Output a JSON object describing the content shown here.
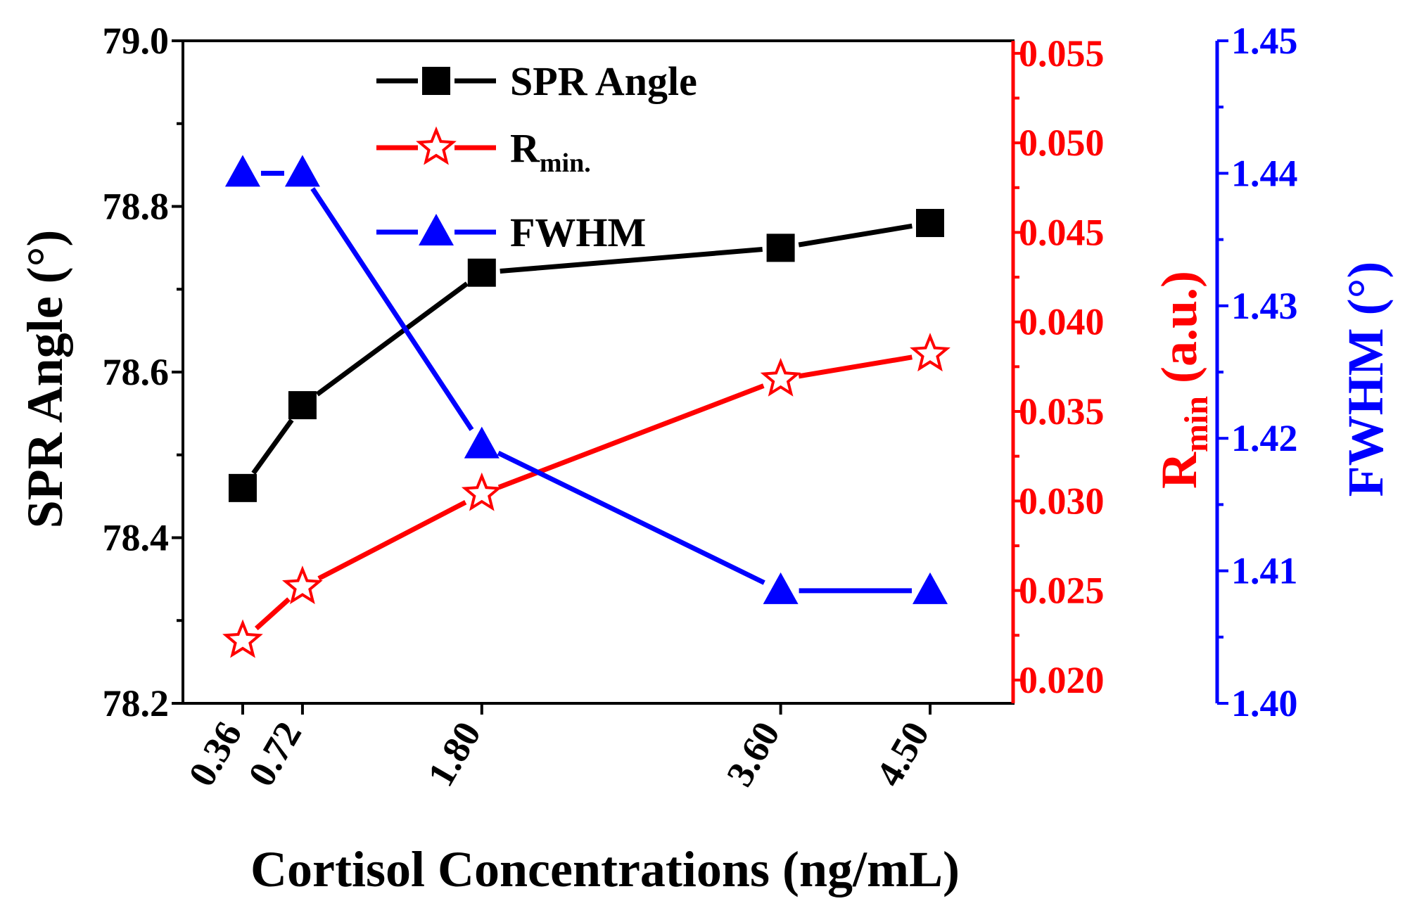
{
  "chart_data": {
    "type": "line",
    "xlabel": "Cortisol Concentrations (ng/mL)",
    "x": [
      0.36,
      0.72,
      1.8,
      3.6,
      4.5
    ],
    "x_tick_labels": [
      "0.36",
      "0.72",
      "1.80",
      "3.60",
      "4.50"
    ],
    "xlim": [
      -0.0,
      5.0
    ],
    "axes": {
      "left": {
        "label": "SPR Angle (°)",
        "ylim": [
          78.2,
          79.0
        ],
        "ticks": [
          "78.2",
          "78.4",
          "78.6",
          "78.8",
          "79.0"
        ],
        "color": "#000000"
      },
      "right1": {
        "label_main": "R",
        "label_sub": "min",
        "label_rest": " (a.u.)",
        "ylim": [
          0.0187,
          0.0557
        ],
        "ticks": [
          "0.020",
          "0.025",
          "0.030",
          "0.035",
          "0.040",
          "0.045",
          "0.050",
          "0.055"
        ],
        "color": "#ff0000"
      },
      "right2": {
        "label": "FWHM (°)",
        "ylim": [
          1.4,
          1.45
        ],
        "ticks": [
          "1.40",
          "1.41",
          "1.42",
          "1.43",
          "1.44",
          "1.45"
        ],
        "color": "#0000ff"
      }
    },
    "series": [
      {
        "name": "SPR Angle",
        "axis": "left",
        "color": "#000000",
        "marker": "square",
        "values": [
          78.46,
          78.56,
          78.72,
          78.75,
          78.78
        ]
      },
      {
        "name_main": "R",
        "name_sub": "min.",
        "axis": "right1",
        "color": "#ff0000",
        "marker": "star",
        "values": [
          0.0222,
          0.0252,
          0.0304,
          0.0368,
          0.0382
        ]
      },
      {
        "name": "FWHM",
        "axis": "right2",
        "color": "#0000ff",
        "marker": "triangle",
        "values": [
          1.44,
          1.44,
          1.4195,
          1.4085,
          1.4085
        ]
      }
    ],
    "legend_position": "top-left"
  }
}
